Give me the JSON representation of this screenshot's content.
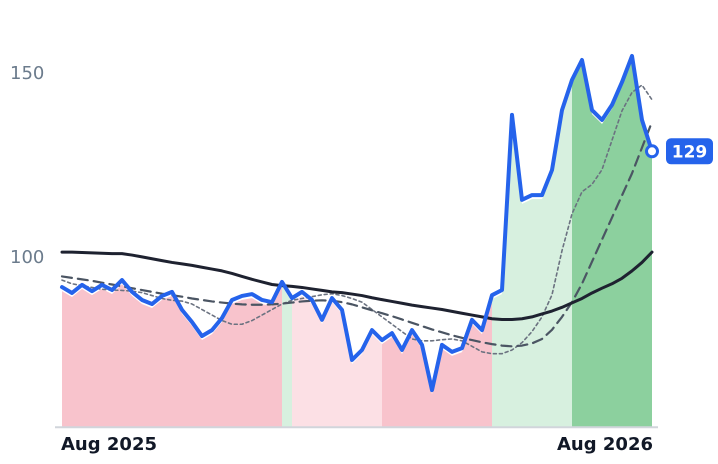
{
  "chart_data": {
    "type": "line",
    "xlim": [
      0,
      59
    ],
    "xticks": [
      {
        "value": 0,
        "label": "Aug 2025"
      },
      {
        "value": 59,
        "label": "Aug 2026"
      }
    ],
    "ylim": [
      54,
      170
    ],
    "yticks": [
      100,
      150
    ],
    "grid": false,
    "fill_colors": {
      "up": "#7fcb94",
      "up_light": "#d3eedb",
      "down": "#f7bcc6",
      "down_light": "#fcdde2"
    },
    "series": [
      {
        "color": "#2563eb",
        "style": "solid",
        "values": [
          92.1,
          90.5,
          92.7,
          91,
          92.7,
          91.3,
          94,
          90.8,
          88.6,
          87.5,
          89.7,
          90.8,
          85.9,
          82.6,
          78.8,
          80.4,
          83.7,
          88.6,
          89.7,
          90.2,
          88.6,
          88,
          93.5,
          89.1,
          90.8,
          88.6,
          83.2,
          89.1,
          85.9,
          72.3,
          75,
          80.4,
          77.7,
          79.6,
          75,
          80.4,
          76.4,
          64.1,
          76.4,
          74.5,
          75.5,
          83.2,
          80.4,
          89.9,
          91.3,
          138.9,
          115.8,
          117.1,
          117.1,
          123.9,
          140.2,
          148.4,
          153.8,
          140.2,
          137.5,
          141.6,
          147.8,
          154.9,
          137.5,
          129
        ]
      },
      {
        "color": "#1e2230",
        "style": "solid",
        "values": [
          101.6,
          101.6,
          101.5,
          101.4,
          101.3,
          101.2,
          101.2,
          100.8,
          100.3,
          99.8,
          99.3,
          98.8,
          98.4,
          98,
          97.5,
          97,
          96.5,
          95.8,
          95,
          94.2,
          93.5,
          92.8,
          92.5,
          92.3,
          92,
          91.6,
          91.2,
          90.8,
          90.6,
          90.2,
          89.8,
          89.2,
          88.7,
          88.2,
          87.7,
          87.2,
          86.8,
          86.4,
          86,
          85.5,
          85,
          84.5,
          84,
          83.5,
          83.3,
          83.3,
          83.5,
          84,
          84.8,
          85.6,
          86.6,
          87.8,
          89,
          90.5,
          91.8,
          93,
          94.5,
          96.5,
          98.8,
          101.6
        ]
      },
      {
        "color": "#4b5563",
        "style": "dashed",
        "values": [
          95,
          94.6,
          94.2,
          93.8,
          93.3,
          92.8,
          92.3,
          91.8,
          91.3,
          90.8,
          90.3,
          89.9,
          89.5,
          89,
          88.6,
          88.2,
          87.9,
          87.6,
          87.4,
          87.3,
          87.3,
          87.4,
          87.6,
          87.9,
          88.2,
          88.4,
          88.5,
          88.4,
          88,
          87.4,
          86.6,
          85.8,
          85,
          84.2,
          83.3,
          82.4,
          81.5,
          80.6,
          79.8,
          79,
          78.3,
          77.7,
          77.1,
          76.6,
          76.2,
          76,
          76.2,
          76.8,
          78,
          80.5,
          84,
          88,
          93,
          99,
          105,
          111,
          117,
          123,
          130,
          137
        ]
      },
      {
        "color": "#6b7280",
        "style": "dotted",
        "values": [
          94,
          93,
          92.5,
          92,
          91.5,
          91.3,
          91.2,
          91,
          90.6,
          89.8,
          89,
          88.5,
          88.3,
          87.5,
          86,
          84.5,
          83,
          82,
          82,
          83,
          84.5,
          86,
          87.5,
          88.5,
          89,
          89.5,
          90,
          90.3,
          89.8,
          89,
          88,
          86,
          84,
          82,
          80,
          78,
          77.5,
          77.5,
          77.8,
          78,
          77.5,
          76,
          74.5,
          74,
          74,
          75,
          77,
          80,
          84,
          90,
          102,
          112,
          118,
          120,
          124,
          132,
          140,
          145,
          147,
          143
        ]
      }
    ]
  }
}
